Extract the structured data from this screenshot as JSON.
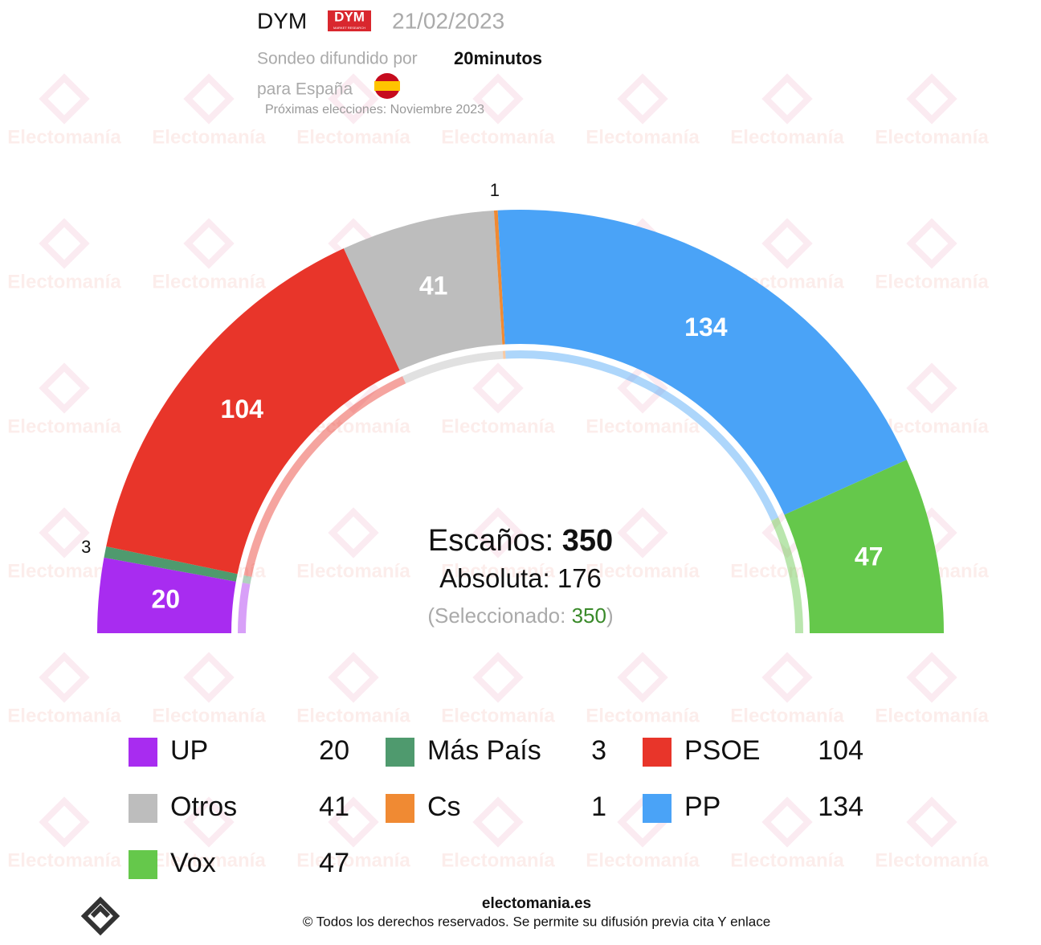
{
  "header": {
    "pollster": "DYM",
    "logo": "DYM",
    "logo_sub": "MARKET RESEARCH",
    "date": "21/02/2023",
    "published_label": "Sondeo difundido por",
    "publisher": "20minutos",
    "region": "para España",
    "next_election": "Próximas elecciones: Noviembre 2023"
  },
  "watermark": "Electomanía",
  "chart_data": {
    "type": "parliament",
    "categories": [
      "UP",
      "Más País",
      "PSOE",
      "Otros",
      "Cs",
      "PP",
      "Vox"
    ],
    "values": [
      20,
      3,
      104,
      41,
      1,
      134,
      47
    ],
    "colors": [
      "#a82cf0",
      "#4f9a6e",
      "#e8352a",
      "#bdbdbd",
      "#f08a33",
      "#4aa3f7",
      "#65c84b"
    ],
    "seats_label": "Escaños:",
    "total": 350,
    "majority_label": "Absoluta:",
    "majority": 176,
    "selected_label": "(Seleccionado:",
    "selected": 350,
    "selected_close": ")"
  },
  "footer": {
    "site": "electomania.es",
    "rights": "© Todos los derechos reservados. Se permite su difusión previa cita Y enlace"
  }
}
